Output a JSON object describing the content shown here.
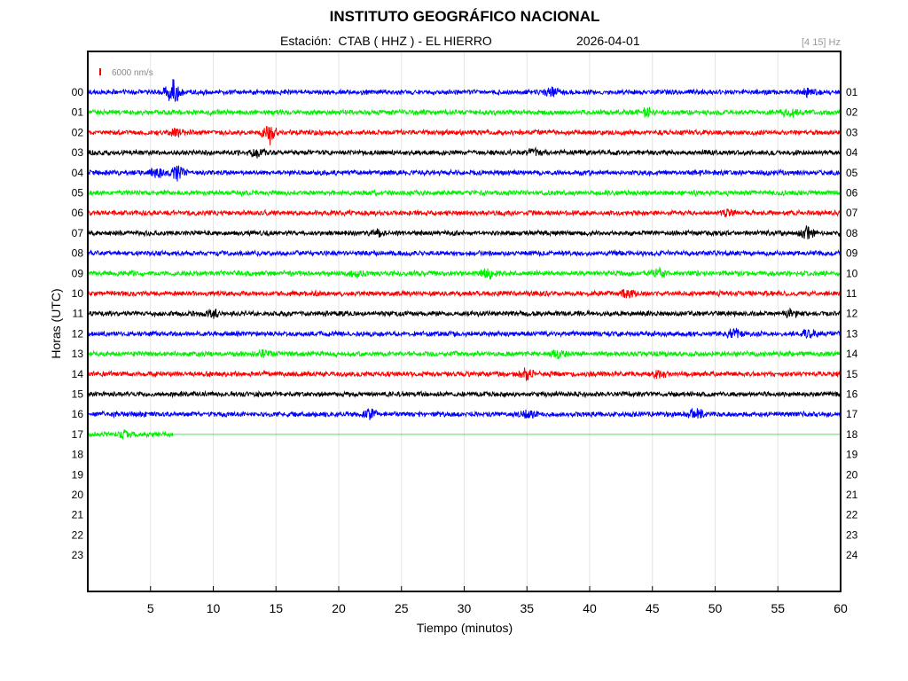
{
  "header": {
    "title": "INSTITUTO GEOGRÁFICO NACIONAL",
    "station_label": "Estación:  CTAB ( HHZ ) - EL HIERRO",
    "date": "2026-04-01",
    "filter": "[4 15] Hz"
  },
  "chart_data": {
    "type": "line",
    "title": "INSTITUTO GEOGRÁFICO NACIONAL",
    "xlabel": "Tiempo (minutos)",
    "ylabel": "Horas (UTC)",
    "xlim": [
      0,
      60
    ],
    "x_ticks": [
      "5",
      "10",
      "15",
      "20",
      "25",
      "30",
      "35",
      "40",
      "45",
      "50",
      "55",
      "60"
    ],
    "x_tick_values": [
      5,
      10,
      15,
      20,
      25,
      30,
      35,
      40,
      45,
      50,
      55,
      60
    ],
    "y_ticks_left": [
      "00",
      "01",
      "02",
      "03",
      "04",
      "05",
      "06",
      "07",
      "08",
      "09",
      "10",
      "11",
      "12",
      "13",
      "14",
      "15",
      "16",
      "17",
      "18",
      "19",
      "20",
      "21",
      "22",
      "23"
    ],
    "y_ticks_right": [
      "01",
      "02",
      "03",
      "04",
      "05",
      "06",
      "07",
      "08",
      "09",
      "10",
      "11",
      "12",
      "13",
      "14",
      "15",
      "16",
      "17",
      "18",
      "19",
      "20",
      "21",
      "22",
      "23",
      "24"
    ],
    "grid": "vertical",
    "scale_label": "6000 nm/s",
    "scale_color": "#ff0000",
    "trace_colors": [
      "#0000ff",
      "#00ee00",
      "#ff0000",
      "#000000"
    ],
    "traces": [
      {
        "hour": "00",
        "start": 0,
        "end": 60,
        "events": [
          {
            "t": 6.8,
            "amp": 16
          },
          {
            "t": 37,
            "amp": 5
          },
          {
            "t": 57.5,
            "amp": 5
          }
        ]
      },
      {
        "hour": "01",
        "start": 0,
        "end": 60,
        "events": [
          {
            "t": 44.5,
            "amp": 6
          },
          {
            "t": 56,
            "amp": 6
          }
        ]
      },
      {
        "hour": "02",
        "start": 0,
        "end": 60,
        "events": [
          {
            "t": 14.5,
            "amp": 13
          },
          {
            "t": 7,
            "amp": 4
          }
        ]
      },
      {
        "hour": "03",
        "start": 0,
        "end": 60,
        "events": [
          {
            "t": 13.5,
            "amp": 5
          },
          {
            "t": 35.5,
            "amp": 5
          }
        ]
      },
      {
        "hour": "04",
        "start": 0,
        "end": 60,
        "events": [
          {
            "t": 7.2,
            "amp": 9
          },
          {
            "t": 5.5,
            "amp": 6
          }
        ]
      },
      {
        "hour": "05",
        "start": 0,
        "end": 60,
        "events": []
      },
      {
        "hour": "06",
        "start": 0,
        "end": 60,
        "events": [
          {
            "t": 51,
            "amp": 4
          }
        ]
      },
      {
        "hour": "07",
        "start": 0,
        "end": 60,
        "events": [
          {
            "t": 57.3,
            "amp": 9
          },
          {
            "t": 23,
            "amp": 4
          }
        ]
      },
      {
        "hour": "08",
        "start": 0,
        "end": 60,
        "events": []
      },
      {
        "hour": "09",
        "start": 0,
        "end": 60,
        "events": [
          {
            "t": 32,
            "amp": 5
          },
          {
            "t": 45.5,
            "amp": 6
          },
          {
            "t": 21.5,
            "amp": 5
          }
        ]
      },
      {
        "hour": "10",
        "start": 0,
        "end": 60,
        "events": [
          {
            "t": 43,
            "amp": 5
          }
        ]
      },
      {
        "hour": "11",
        "start": 0,
        "end": 60,
        "events": [
          {
            "t": 10,
            "amp": 5
          },
          {
            "t": 56,
            "amp": 4
          }
        ]
      },
      {
        "hour": "12",
        "start": 0,
        "end": 60,
        "events": [
          {
            "t": 51.5,
            "amp": 6
          },
          {
            "t": 57.5,
            "amp": 6
          }
        ]
      },
      {
        "hour": "13",
        "start": 0,
        "end": 60,
        "events": [
          {
            "t": 14,
            "amp": 5
          },
          {
            "t": 37.5,
            "amp": 4
          }
        ]
      },
      {
        "hour": "14",
        "start": 0,
        "end": 60,
        "events": [
          {
            "t": 35,
            "amp": 6
          },
          {
            "t": 45.5,
            "amp": 6
          }
        ]
      },
      {
        "hour": "15",
        "start": 0,
        "end": 60,
        "events": []
      },
      {
        "hour": "16",
        "start": 0,
        "end": 60,
        "events": [
          {
            "t": 22.5,
            "amp": 7
          },
          {
            "t": 48.5,
            "amp": 8
          },
          {
            "t": 35,
            "amp": 4
          }
        ]
      },
      {
        "hour": "17",
        "start": 0,
        "end": 6.8,
        "events": [
          {
            "t": 3,
            "amp": 4
          }
        ]
      }
    ]
  }
}
